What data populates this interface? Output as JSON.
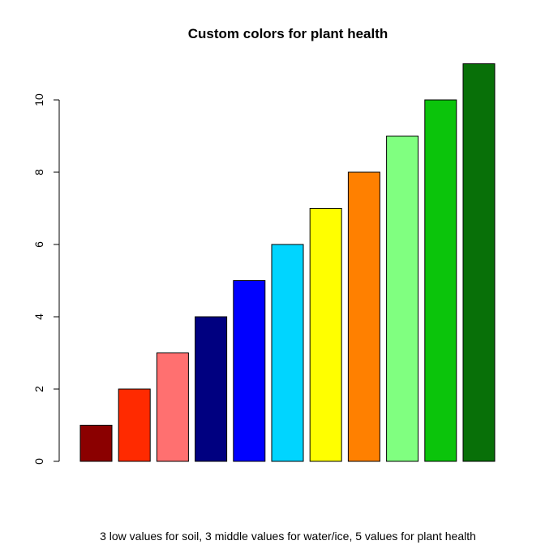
{
  "chart_data": {
    "type": "bar",
    "title": "Custom colors for plant health",
    "xlabel": "3 low values for soil, 3 middle values for water/ice, 5 values for plant health",
    "ylabel": "",
    "values": [
      1,
      2,
      3,
      4,
      5,
      6,
      7,
      8,
      9,
      10,
      11
    ],
    "colors": [
      "#8B0000",
      "#FF2A00",
      "#FF7070",
      "#000080",
      "#0000FF",
      "#00D5FF",
      "#FFFF00",
      "#FF8000",
      "#80FF80",
      "#0BC40B",
      "#087008"
    ],
    "yticks": [
      "0",
      "2",
      "4",
      "6",
      "8",
      "10"
    ],
    "ylim": [
      0,
      11
    ],
    "grid": false,
    "legend": "none"
  }
}
